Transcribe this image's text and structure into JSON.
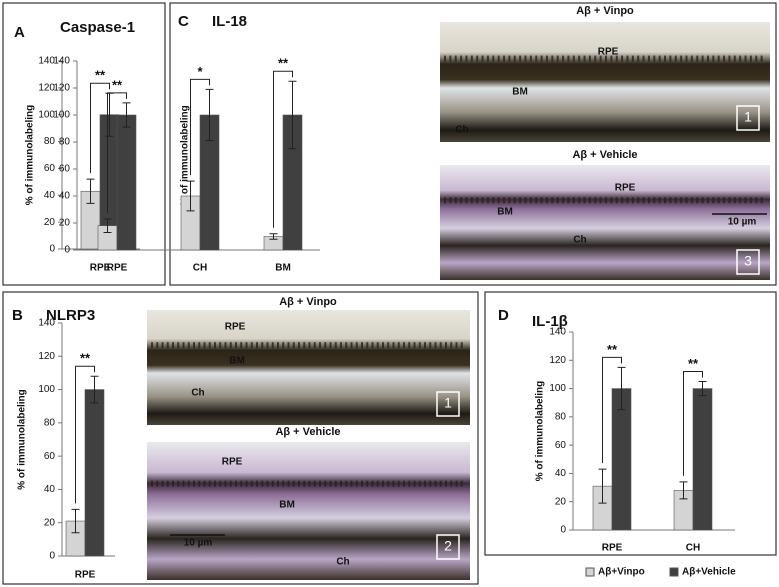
{
  "chart_data": [
    {
      "type": "bar",
      "panel": "A",
      "title": "Caspase-1",
      "ylabel": "% of immunolabeling",
      "categories": [
        "RPE"
      ],
      "ylim": [
        0,
        140
      ],
      "yticks": [
        0,
        20,
        40,
        60,
        80,
        100,
        120,
        140
      ],
      "series": [
        {
          "color": "#d4d4d4",
          "values": [
            43
          ],
          "errors": [
            9
          ]
        },
        {
          "color": "#404040",
          "values": [
            100
          ],
          "errors": [
            16
          ]
        }
      ],
      "significance": [
        "**"
      ]
    },
    {
      "type": "bar",
      "panel": "C",
      "title": "IL-18",
      "ylabel": "% of immunolabeling",
      "categories": [
        "RPE",
        "CH",
        "BM"
      ],
      "ylim": [
        0,
        140
      ],
      "yticks": [
        0,
        20,
        40,
        60,
        80,
        100,
        120,
        140
      ],
      "series": [
        {
          "color": "#d4d4d4",
          "values": [
            18,
            40,
            10
          ],
          "errors": [
            5,
            11,
            2
          ]
        },
        {
          "color": "#404040",
          "values": [
            100,
            100,
            100
          ],
          "errors": [
            9,
            19,
            25
          ]
        }
      ],
      "significance": [
        "**",
        "*",
        "**"
      ]
    },
    {
      "type": "bar",
      "panel": "B",
      "title": "NLRP3",
      "ylabel": "% of immunolabeling",
      "categories": [
        "RPE"
      ],
      "ylim": [
        0,
        140
      ],
      "yticks": [
        0,
        20,
        40,
        60,
        80,
        100,
        120,
        140
      ],
      "series": [
        {
          "color": "#d4d4d4",
          "values": [
            21
          ],
          "errors": [
            7
          ]
        },
        {
          "color": "#404040",
          "values": [
            100
          ],
          "errors": [
            8
          ]
        }
      ],
      "significance": [
        "**"
      ]
    },
    {
      "type": "bar",
      "panel": "D",
      "title": "IL-1β",
      "ylabel": "% of immunolabeling",
      "categories": [
        "RPE",
        "CH"
      ],
      "ylim": [
        0,
        140
      ],
      "yticks": [
        0,
        20,
        40,
        60,
        80,
        100,
        120,
        140
      ],
      "series": [
        {
          "name": "Aβ+Vinpo",
          "color": "#d4d4d4",
          "values": [
            31,
            28
          ],
          "errors": [
            12,
            6
          ]
        },
        {
          "name": "Aβ+Vehicle",
          "color": "#404040",
          "values": [
            100,
            100
          ],
          "errors": [
            15,
            5
          ]
        }
      ],
      "significance": [
        "**",
        "**"
      ]
    }
  ],
  "images": [
    {
      "title": "Aβ + Vinpo",
      "labels": [
        "RPE",
        "BM",
        "Ch",
        "1"
      ]
    },
    {
      "title": "Aβ + Vehicle",
      "labels": [
        "RPE",
        "BM",
        "Ch",
        "10 µm",
        "3"
      ]
    },
    {
      "title": "Aβ + Vinpo",
      "labels": [
        "RPE",
        "BM",
        "Ch",
        "1"
      ]
    },
    {
      "title": "Aβ + Vehicle",
      "labels": [
        "RPE",
        "BM",
        "Ch",
        "10 µm",
        "2"
      ]
    }
  ]
}
